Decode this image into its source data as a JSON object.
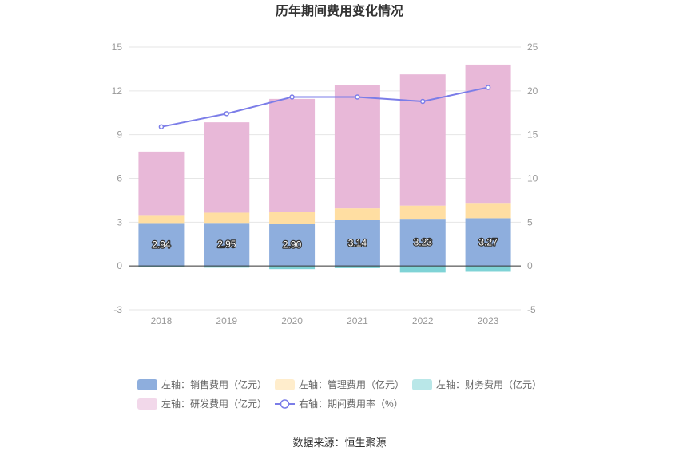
{
  "chart_data": {
    "type": "bar",
    "title": "历年期间费用变化情况",
    "categories": [
      "2018",
      "2019",
      "2020",
      "2021",
      "2022",
      "2023"
    ],
    "left_axis": {
      "ylim": [
        -3,
        15
      ],
      "ticks": [
        "-3",
        "0",
        "3",
        "6",
        "9",
        "12",
        "15"
      ]
    },
    "right_axis": {
      "ylim": [
        -5,
        25
      ],
      "ticks": [
        "-5",
        "0",
        "5",
        "10",
        "15",
        "20",
        "25"
      ]
    },
    "series": [
      {
        "name": "左轴：销售费用（亿元）",
        "type": "bar",
        "axis": "left",
        "color": "#8eaedd",
        "values": [
          2.94,
          2.95,
          2.9,
          3.14,
          3.23,
          3.27
        ],
        "labels": [
          "2.94",
          "2.95",
          "2.90",
          "3.14",
          "3.23",
          "3.27"
        ]
      },
      {
        "name": "左轴：管理费用（亿元）",
        "type": "bar",
        "axis": "left",
        "color": "#ffdea2",
        "values": [
          0.55,
          0.7,
          0.8,
          0.8,
          0.9,
          1.05
        ]
      },
      {
        "name": "左轴：财务费用（亿元）",
        "type": "bar",
        "axis": "left",
        "color": "#7fd3d6",
        "values": [
          -0.08,
          -0.12,
          -0.22,
          -0.15,
          -0.45,
          -0.4
        ]
      },
      {
        "name": "左轴：研发费用（亿元）",
        "type": "bar",
        "axis": "left",
        "color": "#e8b8d8",
        "values": [
          4.35,
          6.2,
          7.75,
          8.45,
          9.0,
          9.48
        ]
      },
      {
        "name": "右轴：期间费用率（%）",
        "type": "line",
        "axis": "right",
        "color": "#7b7de8",
        "values": [
          15.9,
          17.4,
          19.3,
          19.3,
          18.8,
          20.4
        ]
      }
    ],
    "legend_position": "bottom",
    "grid": true
  },
  "footer": {
    "source": "数据来源：恒生聚源"
  }
}
